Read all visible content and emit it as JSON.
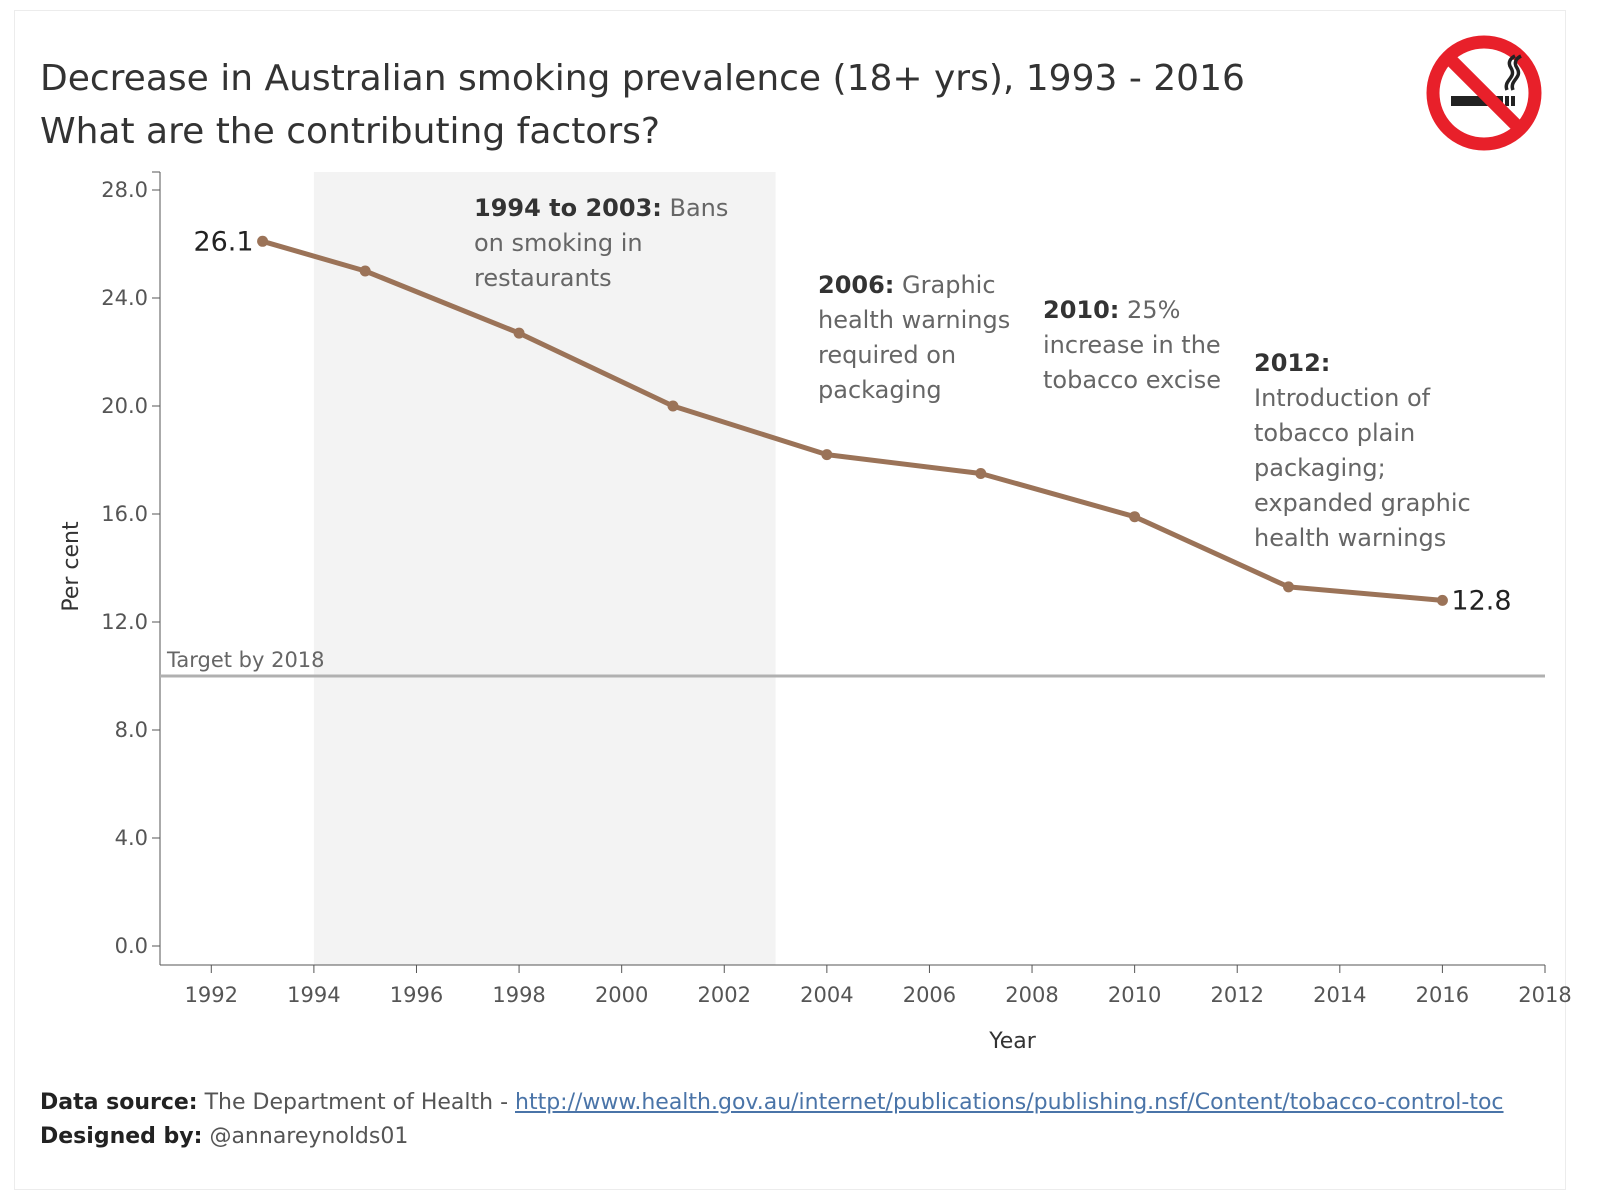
{
  "header": {
    "title_line1": "Decrease in Australian smoking prevalence (18+ yrs), 1993 - 2016",
    "title_line2": "What are the contributing factors?"
  },
  "icon": {
    "name": "no-smoking-icon",
    "ring_color": "#e8202a",
    "symbol_color": "#222222"
  },
  "chart_data": {
    "type": "line",
    "xlabel": "Year",
    "ylabel": "Per cent",
    "xlim": [
      1991,
      2018
    ],
    "ylim": [
      0,
      28
    ],
    "x_ticks": [
      1992,
      1994,
      1996,
      1998,
      2000,
      2002,
      2004,
      2006,
      2008,
      2010,
      2012,
      2014,
      2016,
      2018
    ],
    "y_ticks": [
      "0.0",
      "4.0",
      "8.0",
      "12.0",
      "16.0",
      "20.0",
      "24.0",
      "28.0"
    ],
    "series": [
      {
        "color": "#9b7358",
        "x": [
          1993,
          1995,
          1998,
          2001,
          2004,
          2007,
          2010,
          2013,
          2016
        ],
        "y": [
          26.1,
          25.0,
          22.7,
          20.0,
          18.2,
          17.5,
          15.9,
          13.3,
          12.8
        ]
      }
    ],
    "data_labels": [
      {
        "x": 1993,
        "text": "26.1"
      },
      {
        "x": 2016,
        "text": "12.8"
      }
    ],
    "shaded_band": {
      "from": 1994,
      "to": 2003,
      "color": "#f3f3f3"
    },
    "reference_line": {
      "y": 10,
      "label": "Target by 2018",
      "color": "#b0b0b0"
    },
    "annotations": [
      {
        "bold": "1994 to 2003:",
        "lines": [
          "Bans",
          "on smoking in",
          "restaurants"
        ]
      },
      {
        "bold": "2006:",
        "lines": [
          "Graphic",
          "health warnings",
          "required on",
          "packaging"
        ]
      },
      {
        "bold": "2010:",
        "lines": [
          "25%",
          "increase in the",
          "tobacco excise"
        ]
      },
      {
        "bold": "2012:",
        "lines": [
          "",
          "Introduction of",
          "tobacco plain",
          "packaging;",
          "expanded graphic",
          "health warnings"
        ]
      }
    ],
    "grid": false
  },
  "footer": {
    "source_label": "Data source:",
    "source_text": " The Department of Health - ",
    "source_link": "http://www.health.gov.au/internet/publications/publishing.nsf/Content/tobacco-control-toc",
    "designer_label": "Designed by:",
    "designer_text": " @annareynolds01"
  }
}
